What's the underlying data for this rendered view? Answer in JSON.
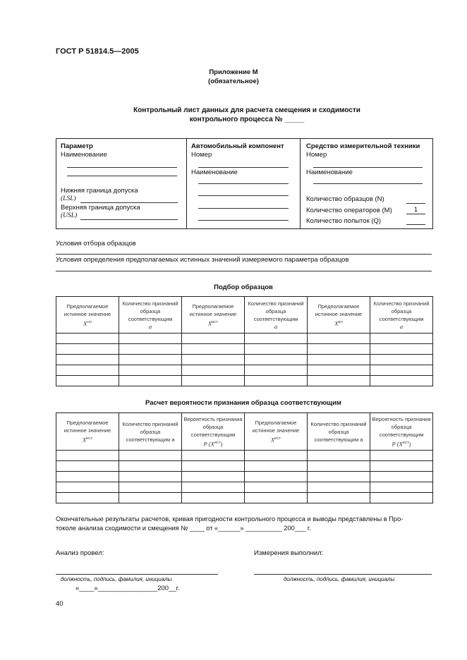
{
  "header": {
    "doc_code": "ГОСТ Р 51814.5—2005"
  },
  "appendix": {
    "title": "Приложение М",
    "subtitle": "(обязательное)"
  },
  "title": {
    "line1": "Контрольный лист данных для расчета смещения и сходимости",
    "line2": "контрольного процесса № _____"
  },
  "info_box": {
    "param": {
      "heading": "Параметр",
      "name_label": "Наименование",
      "lsl_label": "Нижняя граница допуска",
      "lsl_sym": "(LSL)",
      "usl_label": "Верхняя граница допуска",
      "usl_sym": "(USL)"
    },
    "component": {
      "heading": "Автомобильный компонент",
      "number_label": "Номер",
      "name_label": "Наименование"
    },
    "instrument": {
      "heading": "Средство измерительной техники",
      "number_label": "Номер",
      "name_label": "Наименование",
      "samples_label": "Количество образцов (N)",
      "operators_label": "Количество операторов (M)",
      "operators_value": "1",
      "trials_label": "Количество попыток (Q)"
    }
  },
  "conditions": {
    "sampling": "Условия отбора образцов",
    "true_values": "Условия определения предполагаемых истинных значений измеряемого параметра образцов"
  },
  "table1": {
    "title": "Подбор образцов",
    "headers": [
      "Предполагаемое истинное значение",
      "Количество признаний образца соответствующим",
      "Предполагаемое истинное значение",
      "Количество признаний образца соответствующим",
      "Предполагаемое истинное значение",
      "Количество признаний образца соответствующим"
    ],
    "symbols": [
      "X",
      "a",
      "X",
      "a",
      "X",
      "a"
    ],
    "sups": [
      "НП",
      "ВСТ",
      "ВП"
    ],
    "rows": 5
  },
  "table2": {
    "title": "Расчет вероятности признания образца соответствующим",
    "headers": [
      "Предполагаемое истинное значение",
      "Количество признаний образца соответствующим a",
      "Вероятность признания образца соответствующим",
      "Предполагаемое истинное значение",
      "Количество признаний образца соответствующим a",
      "Вероятность признания образца соответствующим"
    ],
    "sym_x": "X",
    "sym_p": "P (X",
    "sup": "ИСТ",
    "rows": 5
  },
  "final": {
    "line1": "Окончательные результаты расчетов, кривая пригодности контрольного процесса и выводы представлены в Про-",
    "line2": "токоле анализа сходимости и смещения  № ____ от «______» __________ 200___ г."
  },
  "signatures": {
    "analysis_label": "Анализ провел:",
    "measure_label": "Измерения выполнил:",
    "caption": "должность, подпись, фамилия, инициалы",
    "date": "«____»________________200__г."
  },
  "footer": {
    "page_number": "40"
  }
}
